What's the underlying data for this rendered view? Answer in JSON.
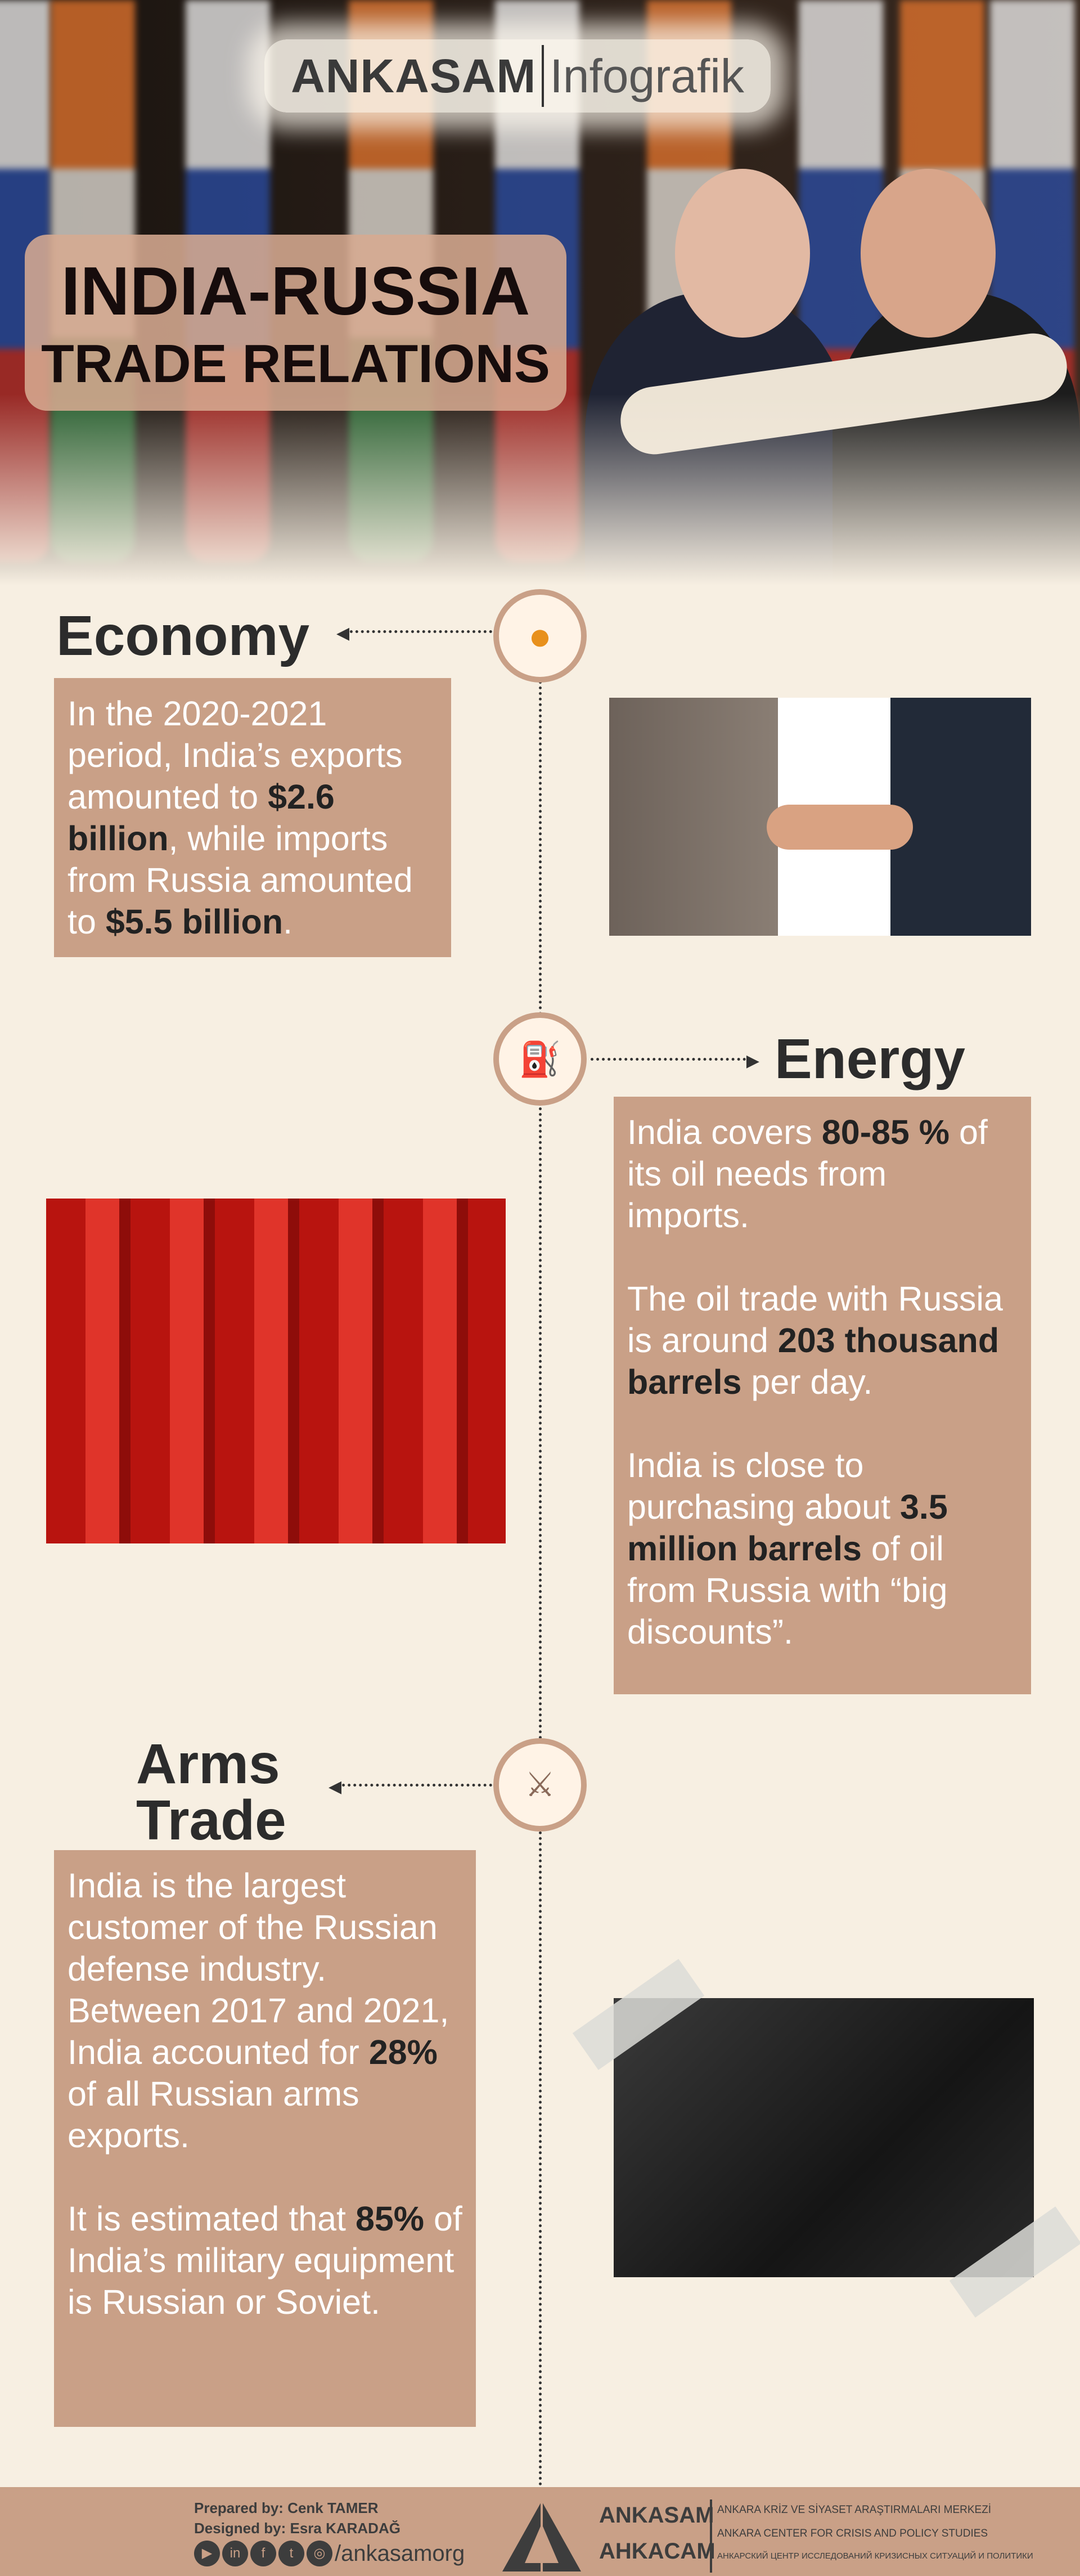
{
  "header": {
    "logo_bold": "ANKASAM",
    "logo_light": "Infografik",
    "title_line1": "INDIA-RUSSIA",
    "title_line2": "TRADE RELATIONS"
  },
  "sections": {
    "economy": {
      "heading": "Economy",
      "icon": "coins-icon",
      "text": [
        "In the 2020-2021 period, India’s exports amounted to ",
        "$2.6 billion",
        ", while imports from Russia amounted to ",
        "$5.5 billion",
        "."
      ]
    },
    "energy": {
      "heading": "Energy",
      "icon": "oil-pump-icon",
      "p1": [
        "India covers ",
        "80-85 %",
        " of its oil needs from imports."
      ],
      "p2": [
        "The oil trade with Russia is around ",
        "203 thousand barrels",
        " per day."
      ],
      "p3": [
        "India is close to purchasing about ",
        "3.5 million barrels",
        " of oil from Russia with “big discounts”."
      ]
    },
    "arms": {
      "heading_line1": "Arms",
      "heading_line2": "Trade",
      "icon": "crossed-rifles-icon",
      "p1": [
        "India is the largest customer of the Russian defense industry. Between 2017 and 2021, India accounted for ",
        "28%",
        " of all Russian arms exports."
      ],
      "p2": [
        "It is estimated that ",
        "85%",
        " of India’s military equipment is Russian or Soviet."
      ]
    }
  },
  "footer": {
    "prepared": "Prepared by: Cenk TAMER",
    "designed": "Designed by: Esra KARADAĞ",
    "social_handle": "/ankasamorg",
    "social_icons": [
      "youtube-icon",
      "linkedin-icon",
      "facebook-icon",
      "twitter-icon",
      "instagram-icon"
    ],
    "org_name": "ANKASAM",
    "org_name_ru": "AHKACAM",
    "org_tr": "ANKARA KRİZ VE SİYASET ARAŞTIRMALARI MERKEZİ",
    "org_en": "ANKARA CENTER FOR CRISIS AND POLICY STUDIES",
    "org_ru": "АНКАРСКИЙ ЦЕНТР ИССЛЕДОВАНИЙ КРИЗИСНЫХ СИТУАЦИЙ И ПОЛИТИКИ"
  },
  "colors": {
    "accent": "#c9a087",
    "background": "#f7efe2",
    "text_dark": "#2c2c2c"
  }
}
